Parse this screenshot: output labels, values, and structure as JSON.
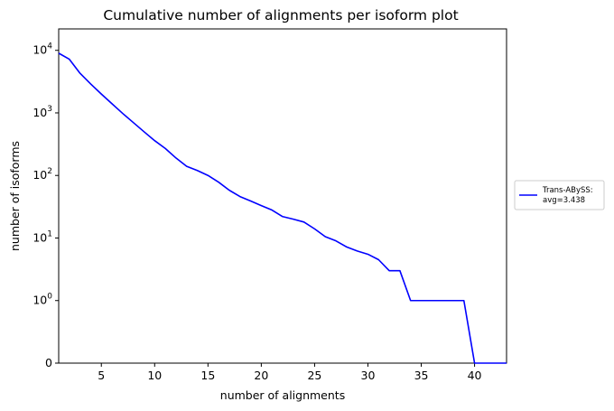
{
  "chart_data": {
    "type": "line",
    "title": "Cumulative number of alignments per isoform plot",
    "xlabel": "number of alignments",
    "ylabel": "number of isoforms",
    "xlim": [
      1,
      43
    ],
    "yscale": "symlog",
    "ylim_top": 22000,
    "x_ticks": [
      5,
      10,
      15,
      20,
      25,
      30,
      35,
      40
    ],
    "y_ticks": [
      {
        "value": 0,
        "label": "0"
      },
      {
        "value": 1,
        "base": "10",
        "exp": "0"
      },
      {
        "value": 10,
        "base": "10",
        "exp": "1"
      },
      {
        "value": 100,
        "base": "10",
        "exp": "2"
      },
      {
        "value": 1000,
        "base": "10",
        "exp": "3"
      },
      {
        "value": 10000,
        "base": "10",
        "exp": "4"
      }
    ],
    "grid": false,
    "legend_position": "outside-right",
    "series": [
      {
        "name": "Trans-ABySS:",
        "name_line2": "avg=3.438",
        "color": "#0000ff",
        "x": [
          1,
          2,
          3,
          4,
          5,
          6,
          7,
          8,
          9,
          10,
          11,
          12,
          13,
          14,
          15,
          16,
          17,
          18,
          19,
          20,
          21,
          22,
          23,
          24,
          25,
          26,
          27,
          28,
          29,
          30,
          31,
          32,
          33,
          34,
          35,
          36,
          37,
          38,
          39,
          40,
          41,
          42,
          43
        ],
        "y": [
          9000,
          7200,
          4300,
          2900,
          2000,
          1400,
          980,
          700,
          500,
          360,
          270,
          190,
          140,
          120,
          100,
          78,
          58,
          46,
          39,
          33,
          28,
          22,
          20,
          18,
          14,
          10.5,
          9,
          7.2,
          6.2,
          5.5,
          4.5,
          3,
          3,
          1,
          1,
          1,
          1,
          1,
          1,
          0,
          0,
          0,
          0
        ]
      }
    ]
  }
}
